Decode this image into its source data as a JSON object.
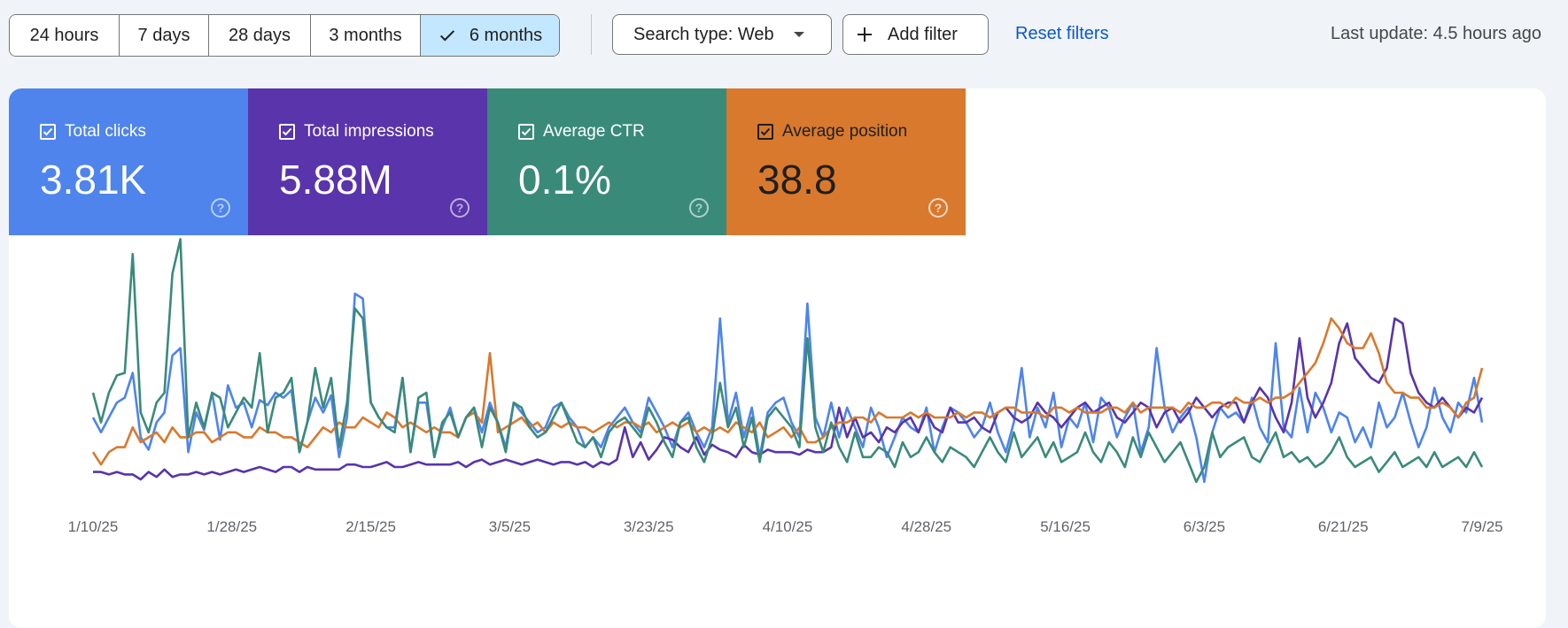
{
  "toolbar": {
    "ranges": [
      "24 hours",
      "7 days",
      "28 days",
      "3 months",
      "6 months"
    ],
    "selected_range": "6 months",
    "search_type": "Search type: Web",
    "add_filter": "Add filter",
    "reset_filters": "Reset filters",
    "last_update": "Last update: 4.5 hours ago"
  },
  "metrics": [
    {
      "label": "Total clicks",
      "value": "3.81K",
      "color": "#4e84ec",
      "checked": true
    },
    {
      "label": "Total impressions",
      "value": "5.88M",
      "color": "#5934aa",
      "checked": true
    },
    {
      "label": "Average CTR",
      "value": "0.1%",
      "color": "#3a8a7a",
      "checked": true
    },
    {
      "label": "Average position",
      "value": "38.8",
      "color": "#d8792e",
      "checked": true
    }
  ],
  "chart_data": {
    "type": "line",
    "x_tick_labels": [
      "1/10/25",
      "1/28/25",
      "2/15/25",
      "3/5/25",
      "3/23/25",
      "4/10/25",
      "4/28/25",
      "5/16/25",
      "6/3/25",
      "6/21/25",
      "7/9/25"
    ],
    "grid": false,
    "legend": "metric cards above chart",
    "series": [
      {
        "name": "Total clicks",
        "color": "#4e84ec",
        "values": [
          30,
          24,
          30,
          36,
          38,
          48,
          22,
          17,
          28,
          32,
          55,
          58,
          16,
          32,
          25,
          40,
          21,
          43,
          34,
          36,
          26,
          37,
          35,
          40,
          38,
          41,
          16,
          28,
          38,
          32,
          39,
          14,
          30,
          80,
          78,
          36,
          30,
          26,
          26,
          46,
          16,
          36,
          36,
          14,
          26,
          34,
          22,
          30,
          34,
          24,
          36,
          28,
          18,
          36,
          32,
          28,
          24,
          26,
          34,
          36,
          30,
          26,
          18,
          22,
          18,
          26,
          30,
          34,
          28,
          24,
          38,
          32,
          26,
          18,
          28,
          32,
          24,
          18,
          26,
          70,
          28,
          40,
          22,
          34,
          14,
          32,
          36,
          38,
          28,
          22,
          76,
          30,
          22,
          36,
          22,
          34,
          26,
          18,
          34,
          26,
          14,
          22,
          30,
          26,
          24,
          34,
          16,
          26,
          34,
          32,
          28,
          22,
          26,
          36,
          24,
          16,
          28,
          50,
          22,
          34,
          26,
          40,
          18,
          30,
          26,
          36,
          20,
          38,
          34,
          22,
          30,
          36,
          16,
          26,
          58,
          34,
          24,
          30,
          34,
          22,
          4,
          24,
          34,
          30,
          32,
          28,
          38,
          26,
          20,
          60,
          26,
          22,
          42,
          24,
          40,
          34,
          24,
          32,
          30,
          20,
          26,
          18,
          36,
          26,
          30,
          40,
          28,
          18,
          26,
          42,
          30,
          24,
          36,
          32,
          46,
          28
        ],
        "reveal": "line"
      },
      {
        "name": "Total impressions",
        "color": "#5934aa",
        "values": [
          8,
          8,
          7,
          8,
          7,
          7,
          5,
          8,
          6,
          9,
          6,
          7,
          7,
          8,
          7,
          8,
          7,
          8,
          9,
          8,
          9,
          10,
          9,
          8,
          10,
          10,
          8,
          10,
          9,
          9,
          9,
          9,
          11,
          11,
          10,
          10,
          11,
          12,
          10,
          10,
          11,
          12,
          11,
          11,
          11,
          11,
          12,
          10,
          12,
          13,
          11,
          12,
          13,
          12,
          11,
          12,
          13,
          12,
          11,
          12,
          12,
          11,
          12,
          10,
          12,
          11,
          13,
          26,
          14,
          20,
          13,
          17,
          22,
          21,
          18,
          16,
          22,
          15,
          19,
          17,
          16,
          14,
          19,
          16,
          15,
          17,
          16,
          16,
          16,
          15,
          17,
          16,
          16,
          18,
          34,
          22,
          30,
          22,
          24,
          20,
          26,
          24,
          28,
          30,
          24,
          32,
          26,
          24,
          34,
          28,
          28,
          30,
          26,
          24,
          32,
          34,
          30,
          28,
          30,
          36,
          32,
          30,
          26,
          30,
          34,
          36,
          32,
          34,
          36,
          30,
          28,
          32,
          36,
          34,
          26,
          32,
          34,
          28,
          32,
          38,
          34,
          30,
          34,
          36,
          36,
          28,
          36,
          42,
          38,
          30,
          24,
          36,
          62,
          38,
          30,
          36,
          44,
          60,
          68,
          54,
          50,
          46,
          44,
          50,
          70,
          68,
          48,
          40,
          36,
          34,
          38,
          34,
          30,
          34,
          32,
          38
        ]
      },
      {
        "name": "Average position",
        "color": "#d8792e",
        "values": [
          16,
          11,
          16,
          18,
          18,
          26,
          20,
          22,
          24,
          20,
          26,
          22,
          22,
          24,
          24,
          20,
          22,
          24,
          24,
          22,
          22,
          26,
          24,
          24,
          22,
          22,
          20,
          18,
          22,
          26,
          24,
          28,
          26,
          26,
          30,
          28,
          26,
          32,
          30,
          26,
          28,
          26,
          24,
          26,
          24,
          24,
          22,
          30,
          32,
          28,
          56,
          24,
          26,
          28,
          30,
          26,
          28,
          24,
          28,
          26,
          28,
          26,
          26,
          24,
          26,
          28,
          26,
          28,
          28,
          26,
          28,
          24,
          26,
          28,
          26,
          28,
          24,
          26,
          24,
          26,
          24,
          28,
          26,
          24,
          28,
          22,
          24,
          26,
          22,
          26,
          20,
          20,
          22,
          26,
          28,
          28,
          30,
          30,
          28,
          32,
          30,
          30,
          30,
          32,
          30,
          32,
          30,
          30,
          30,
          32,
          30,
          32,
          32,
          30,
          32,
          34,
          34,
          32,
          32,
          32,
          30,
          34,
          34,
          32,
          34,
          32,
          32,
          32,
          34,
          34,
          32,
          36,
          32,
          34,
          34,
          34,
          34,
          32,
          36,
          34,
          34,
          36,
          36,
          34,
          38,
          36,
          36,
          38,
          36,
          38,
          38,
          40,
          44,
          48,
          52,
          60,
          70,
          66,
          60,
          58,
          58,
          64,
          56,
          44,
          40,
          40,
          38,
          38,
          34,
          34,
          36,
          34,
          30,
          36,
          38,
          50
        ]
      },
      {
        "name": "Average CTR",
        "color": "#3a8a7a",
        "values": [
          40,
          28,
          40,
          47,
          48,
          96,
          32,
          24,
          36,
          40,
          88,
          102,
          22,
          36,
          26,
          40,
          38,
          26,
          32,
          38,
          34,
          56,
          24,
          38,
          40,
          46,
          16,
          28,
          50,
          34,
          46,
          18,
          36,
          74,
          70,
          36,
          30,
          26,
          24,
          46,
          16,
          38,
          40,
          14,
          28,
          32,
          22,
          30,
          34,
          18,
          34,
          28,
          16,
          36,
          34,
          26,
          22,
          24,
          30,
          36,
          28,
          20,
          18,
          22,
          14,
          24,
          28,
          30,
          26,
          22,
          34,
          28,
          20,
          14,
          28,
          30,
          18,
          12,
          22,
          44,
          26,
          34,
          18,
          30,
          12,
          30,
          34,
          30,
          26,
          18,
          62,
          26,
          16,
          28,
          18,
          12,
          24,
          14,
          14,
          18,
          16,
          10,
          20,
          14,
          16,
          22,
          16,
          12,
          18,
          16,
          14,
          10,
          16,
          22,
          16,
          12,
          24,
          14,
          18,
          22,
          14,
          20,
          12,
          14,
          16,
          24,
          16,
          12,
          20,
          16,
          10,
          22,
          14,
          24,
          18,
          12,
          16,
          20,
          12,
          4,
          10,
          24,
          14,
          18,
          20,
          22,
          14,
          12,
          18,
          24,
          14,
          16,
          12,
          14,
          10,
          12,
          16,
          22,
          14,
          10,
          12,
          14,
          8,
          12,
          16,
          10,
          12,
          14,
          10,
          16,
          10,
          12,
          14,
          10,
          16,
          10
        ]
      }
    ]
  }
}
